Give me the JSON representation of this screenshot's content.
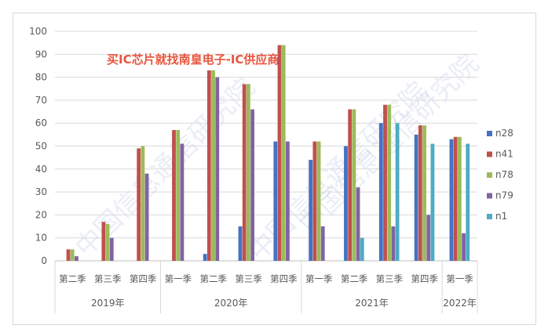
{
  "chart_data": {
    "type": "bar",
    "ylim": [
      0,
      100
    ],
    "yticks": [
      0,
      10,
      20,
      30,
      40,
      50,
      60,
      70,
      80,
      90,
      100
    ],
    "grid": true,
    "legend_position": "right",
    "banner": "买IC芯片就找南皇电子-IC供应商",
    "watermark": [
      "中国信息通信研究院"
    ],
    "categories": [
      "第二季",
      "第三季",
      "第四季",
      "第一季",
      "第二季",
      "第三季",
      "第四季",
      "第一季",
      "第二季",
      "第三季",
      "第四季",
      "第一季"
    ],
    "years": [
      {
        "label": "2019年",
        "count": 3
      },
      {
        "label": "2020年",
        "count": 4
      },
      {
        "label": "2021年",
        "count": 4
      },
      {
        "label": "2022年",
        "count": 1
      }
    ],
    "series": [
      {
        "name": "n28",
        "color": "#4472c4",
        "values": [
          0,
          0,
          0,
          0,
          3,
          15,
          52,
          44,
          50,
          60,
          55,
          53
        ]
      },
      {
        "name": "n41",
        "color": "#c0504d",
        "values": [
          5,
          17,
          49,
          57,
          83,
          77,
          94,
          52,
          66,
          68,
          59,
          54
        ]
      },
      {
        "name": "n78",
        "color": "#9bbb59",
        "values": [
          5,
          16,
          50,
          57,
          83,
          77,
          94,
          52,
          66,
          68,
          59,
          54
        ]
      },
      {
        "name": "n79",
        "color": "#8064a2",
        "values": [
          2,
          10,
          38,
          51,
          80,
          66,
          52,
          15,
          32,
          15,
          20,
          12
        ]
      },
      {
        "name": "n1",
        "color": "#4bacc6",
        "values": [
          0,
          0,
          0,
          0,
          0,
          0,
          0,
          0,
          10,
          60,
          51,
          51
        ]
      }
    ]
  }
}
